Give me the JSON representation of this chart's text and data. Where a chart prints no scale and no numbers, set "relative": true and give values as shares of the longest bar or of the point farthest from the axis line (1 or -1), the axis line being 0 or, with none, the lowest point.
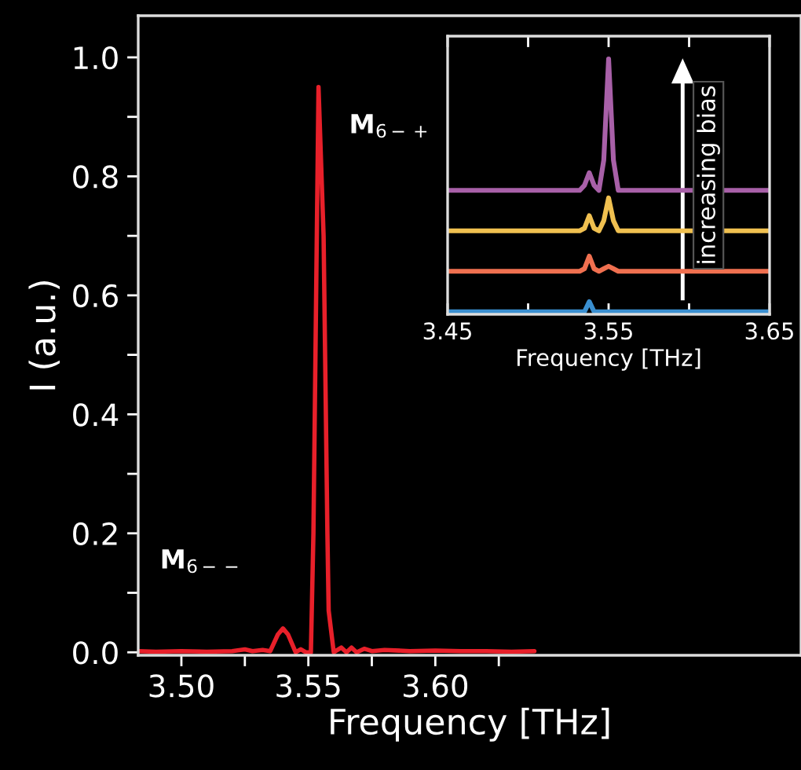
{
  "chart_data": [
    {
      "type": "line",
      "xlabel": "Frequency [THz]",
      "ylabel": "I (a.u.)",
      "x": [
        3.483,
        3.49,
        3.5,
        3.51,
        3.52,
        3.525,
        3.528,
        3.532,
        3.535,
        3.538,
        3.54,
        3.542,
        3.545,
        3.547,
        3.549,
        3.551,
        3.552,
        3.554,
        3.556,
        3.5575,
        3.558,
        3.56,
        3.563,
        3.565,
        3.567,
        3.569,
        3.572,
        3.575,
        3.58,
        3.59,
        3.6,
        3.61,
        3.62,
        3.63,
        3.639
      ],
      "series": [
        {
          "color": "#e8202a",
          "values": [
            0.002,
            0.001,
            0.002,
            0.001,
            0.002,
            0.005,
            0.002,
            0.004,
            0.002,
            0.03,
            0.04,
            0.03,
            0.0,
            0.005,
            0.0,
            0.0,
            0.2,
            0.95,
            0.7,
            0.2,
            0.07,
            0.0,
            0.008,
            0.0,
            0.008,
            0.0,
            0.006,
            0.002,
            0.004,
            0.002,
            0.003,
            0.002,
            0.002,
            0.001,
            0.002
          ]
        }
      ],
      "xlim": [
        3.483,
        3.744
      ],
      "ylim": [
        -0.005,
        1.07
      ],
      "xticks": [
        {
          "value": 3.5,
          "label": "3.50"
        },
        {
          "value": 3.525,
          "label": null
        },
        3.55,
        {
          "value": 3.575,
          "label": null
        },
        {
          "value": 3.6,
          "label": "3.60"
        },
        {
          "value": 3.625,
          "label": null
        }
      ],
      "yticks": [
        {
          "value": 0.0,
          "label": "0.0"
        },
        {
          "value": 0.1,
          "label": null
        },
        0.2,
        {
          "value": 0.3,
          "label": null
        },
        0.4,
        {
          "value": 0.5,
          "label": null
        },
        0.6,
        {
          "value": 0.7,
          "label": null
        },
        0.8,
        {
          "value": 0.9,
          "label": null
        },
        {
          "value": 1.0,
          "label": "1.0"
        }
      ],
      "annotations": [
        {
          "text": "M$_{6−+}$",
          "x": 3.554,
          "y": 0.95
        },
        {
          "text": "M$_{6−−}$",
          "x": 3.54,
          "y": 0.04
        }
      ]
    },
    {
      "type": "line",
      "relative": true,
      "xlabel": "Frequency [THz]",
      "x": [
        3.45,
        3.52,
        3.532,
        3.535,
        3.538,
        3.541,
        3.544,
        3.547,
        3.55,
        3.553,
        3.556,
        3.6,
        3.65
      ],
      "series": [
        {
          "color": "#3a8fd0",
          "values": [
            0.0,
            0.0,
            0.0,
            0.0,
            0.04,
            0.0,
            0.0,
            0.0,
            0.0,
            0.0,
            0.0,
            0.0,
            0.0
          ]
        },
        {
          "color": "#f07050",
          "values": [
            0.16,
            0.16,
            0.16,
            0.17,
            0.22,
            0.17,
            0.16,
            0.17,
            0.18,
            0.17,
            0.16,
            0.16,
            0.16
          ]
        },
        {
          "color": "#f0c050",
          "values": [
            0.32,
            0.32,
            0.32,
            0.33,
            0.38,
            0.33,
            0.32,
            0.36,
            0.45,
            0.36,
            0.32,
            0.32,
            0.32
          ]
        },
        {
          "color": "#a860a8",
          "values": [
            0.48,
            0.48,
            0.48,
            0.5,
            0.55,
            0.5,
            0.48,
            0.6,
            1.0,
            0.6,
            0.48,
            0.48,
            0.48
          ]
        }
      ],
      "xlim": [
        3.45,
        3.65
      ],
      "xticks": [
        3.45,
        {
          "value": 3.5,
          "label": null
        },
        3.55,
        {
          "value": 3.6,
          "label": null
        },
        3.65
      ],
      "annotations": [
        "increasing bias"
      ]
    }
  ]
}
